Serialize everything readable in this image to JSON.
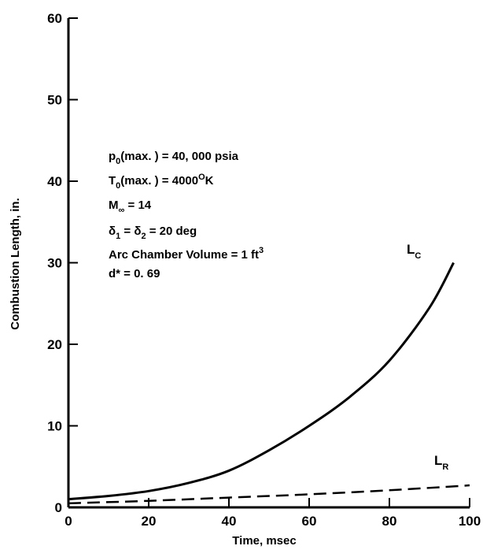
{
  "chart_data": {
    "type": "line",
    "xlabel": "Time, msec",
    "ylabel": "Combustion Length, in.",
    "xlim": [
      0,
      100
    ],
    "ylim": [
      0,
      60
    ],
    "xticks": [
      "0",
      "20",
      "40",
      "60",
      "80",
      "100"
    ],
    "yticks": [
      "0",
      "10",
      "20",
      "30",
      "40",
      "50",
      "60"
    ],
    "grid": false,
    "annotations": [
      {
        "text": "p0(max.) = 40, 000 psia"
      },
      {
        "text": "T0(max.) = 4000°K"
      },
      {
        "text": "M∞ = 14"
      },
      {
        "text": "δ1 = δ2 = 20 deg"
      },
      {
        "text": "Arc Chamber Volume = 1 ft3"
      },
      {
        "text": "d* = 0. 69"
      }
    ],
    "series": [
      {
        "name": "LC",
        "style": "solid",
        "x": [
          0,
          10,
          20,
          30,
          40,
          50,
          60,
          70,
          80,
          90,
          96
        ],
        "y": [
          1.0,
          1.4,
          2.0,
          3.0,
          4.5,
          7.0,
          10.0,
          13.5,
          18.0,
          24.5,
          30.0
        ]
      },
      {
        "name": "LR",
        "style": "dashed",
        "x": [
          0,
          20,
          40,
          60,
          80,
          100
        ],
        "y": [
          0.5,
          0.8,
          1.2,
          1.6,
          2.1,
          2.7
        ]
      }
    ]
  }
}
